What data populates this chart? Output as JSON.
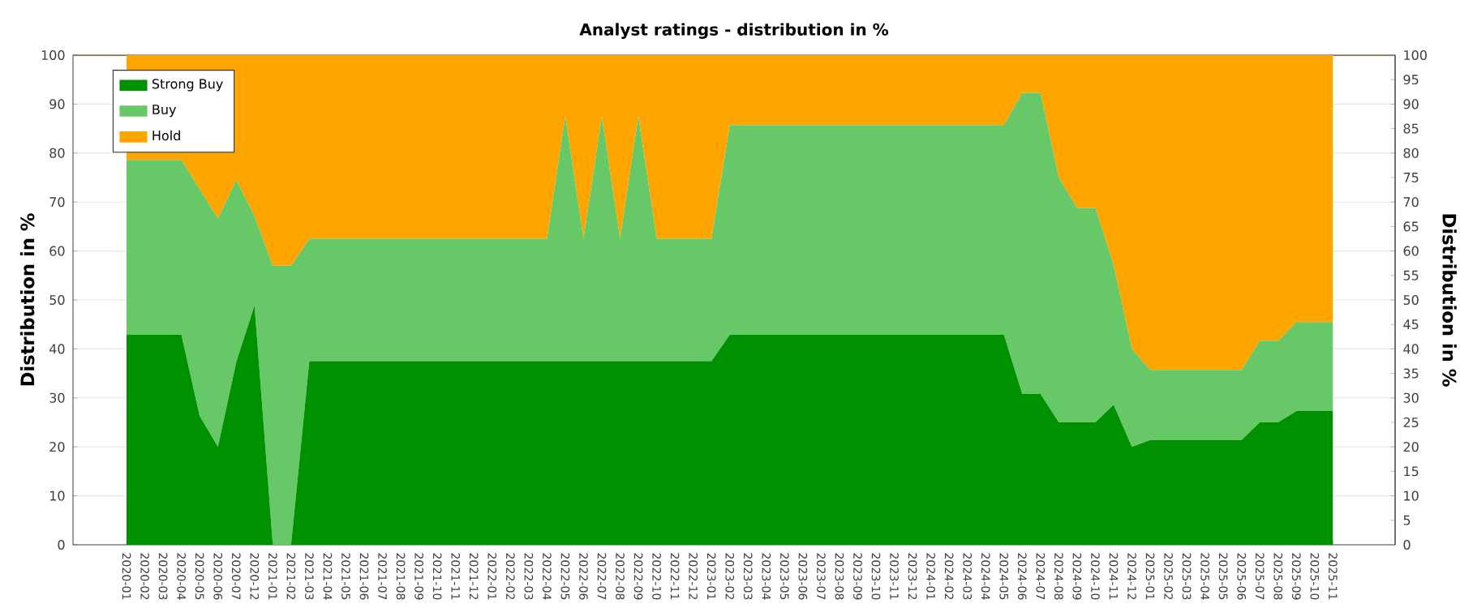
{
  "chart_data": {
    "type": "area",
    "stacked": true,
    "title": "Analyst ratings - distribution in %",
    "ylabel": "Distribution in %",
    "y2label": "Distribution in %",
    "categories": [
      "2020-01",
      "2020-02",
      "2020-03",
      "2020-04",
      "2020-05",
      "2020-06",
      "2020-07",
      "2020-12",
      "2021-01",
      "2021-02",
      "2021-03",
      "2021-04",
      "2021-05",
      "2021-06",
      "2021-07",
      "2021-08",
      "2021-09",
      "2021-10",
      "2021-11",
      "2021-12",
      "2022-01",
      "2022-02",
      "2022-03",
      "2022-04",
      "2022-05",
      "2022-06",
      "2022-07",
      "2022-08",
      "2022-09",
      "2022-10",
      "2022-11",
      "2022-12",
      "2023-01",
      "2023-02",
      "2023-03",
      "2023-04",
      "2023-05",
      "2023-06",
      "2023-07",
      "2023-08",
      "2023-09",
      "2023-10",
      "2023-11",
      "2023-12",
      "2024-01",
      "2024-02",
      "2024-03",
      "2024-04",
      "2024-05",
      "2024-06",
      "2024-07",
      "2024-08",
      "2024-09",
      "2024-10",
      "2024-11",
      "2024-12",
      "2025-01",
      "2025-02",
      "2025-03",
      "2025-04",
      "2025-05",
      "2025-06",
      "2025-07",
      "2025-08",
      "2025-09",
      "2025-10",
      "2025-11"
    ],
    "series": [
      {
        "name": "Strong Buy",
        "color": "#009100",
        "values": [
          42.9,
          42.9,
          42.9,
          42.9,
          26.3,
          20,
          37.3,
          48.9,
          0,
          0,
          37.5,
          37.5,
          37.5,
          37.5,
          37.5,
          37.5,
          37.5,
          37.5,
          37.5,
          37.5,
          37.5,
          37.5,
          37.5,
          37.5,
          37.5,
          37.5,
          37.5,
          37.5,
          37.5,
          37.5,
          37.5,
          37.5,
          37.5,
          42.9,
          42.9,
          42.9,
          42.9,
          42.9,
          42.9,
          42.9,
          42.9,
          42.9,
          42.9,
          42.9,
          42.9,
          42.9,
          42.9,
          42.9,
          42.9,
          30.8,
          30.8,
          25,
          25,
          25,
          28.6,
          20,
          21.4,
          21.4,
          21.4,
          21.4,
          21.4,
          21.4,
          25,
          25,
          27.3,
          27.3,
          27.3
        ]
      },
      {
        "name": "Buy",
        "color": "#66c866",
        "values": [
          35.7,
          35.7,
          35.7,
          35.7,
          46.3,
          46.6,
          37.2,
          18.2,
          57,
          57,
          25,
          25,
          25,
          25,
          25,
          25,
          25,
          25,
          25,
          25,
          25,
          25,
          25,
          25,
          50,
          25,
          50,
          25,
          50,
          25,
          25,
          25,
          25,
          42.8,
          42.8,
          42.8,
          42.8,
          42.8,
          42.8,
          42.8,
          42.8,
          42.8,
          42.8,
          42.8,
          42.8,
          42.8,
          42.8,
          42.8,
          42.8,
          61.5,
          61.5,
          50,
          43.8,
          43.8,
          28.5,
          20,
          14.3,
          14.3,
          14.3,
          14.3,
          14.3,
          14.3,
          16.7,
          16.7,
          18.2,
          18.2,
          18.2
        ]
      },
      {
        "name": "Hold",
        "color": "#ffa500",
        "values": [
          21.4,
          21.4,
          21.4,
          21.4,
          27.4,
          33.4,
          25.5,
          32.9,
          43,
          43,
          37.5,
          37.5,
          37.5,
          37.5,
          37.5,
          37.5,
          37.5,
          37.5,
          37.5,
          37.5,
          37.5,
          37.5,
          37.5,
          37.5,
          12.5,
          37.5,
          12.5,
          37.5,
          12.5,
          37.5,
          37.5,
          37.5,
          37.5,
          14.3,
          14.3,
          14.3,
          14.3,
          14.3,
          14.3,
          14.3,
          14.3,
          14.3,
          14.3,
          14.3,
          14.3,
          14.3,
          14.3,
          14.3,
          14.3,
          7.7,
          7.7,
          25,
          31.2,
          31.2,
          42.9,
          60,
          64.3,
          64.3,
          64.3,
          64.3,
          64.3,
          64.3,
          58.3,
          58.3,
          54.5,
          54.5,
          54.5
        ]
      }
    ],
    "ylim": [
      0,
      100
    ],
    "yticks": [
      0,
      10,
      20,
      30,
      40,
      50,
      60,
      70,
      80,
      90,
      100
    ],
    "y2lim": [
      0,
      100
    ],
    "y2ticks": [
      0,
      5,
      10,
      15,
      20,
      25,
      30,
      35,
      40,
      45,
      50,
      55,
      60,
      65,
      70,
      75,
      80,
      85,
      90,
      95,
      100
    ],
    "grid": "y",
    "legend": "top left"
  }
}
